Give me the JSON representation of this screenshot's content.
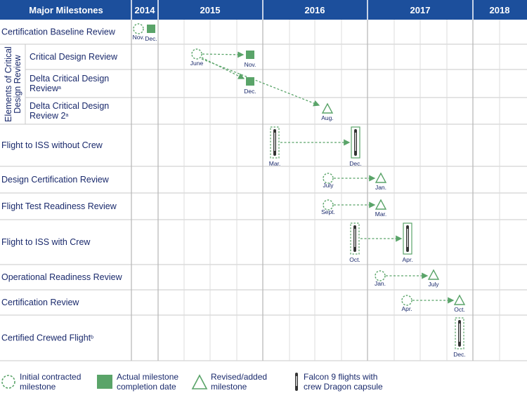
{
  "header": {
    "title": "Major Milestones",
    "years": [
      "2014",
      "2015",
      "2016",
      "2017",
      "2018"
    ]
  },
  "group_label": [
    "Elements of Critical",
    "Design Review"
  ],
  "rows": [
    {
      "lines": [
        "Certification Baseline Review"
      ]
    },
    {
      "lines": [
        "Critical Design Review"
      ]
    },
    {
      "lines": [
        "Delta Critical Design",
        "Review"
      ],
      "sup": "a"
    },
    {
      "lines": [
        "Delta Critical Design",
        "Review 2"
      ],
      "sup": "a"
    },
    {
      "lines": [
        "Flight to ISS without Crew"
      ]
    },
    {
      "lines": [
        "Design Certification Review"
      ]
    },
    {
      "lines": [
        "Flight Test Readiness Review"
      ]
    },
    {
      "lines": [
        "Flight to ISS with Crew"
      ]
    },
    {
      "lines": [
        "Operational Readiness Review"
      ]
    },
    {
      "lines": [
        "Certification Review"
      ]
    },
    {
      "lines": [
        "Certified Crewed Flight"
      ],
      "sup": "b"
    }
  ],
  "marker_labels": {
    "cbr_initial": "Nov.",
    "cbr_actual": "Dec.",
    "cdr_initial": "June",
    "cdr_actual": "Nov.",
    "dcdr_actual": "Dec.",
    "dcdr2_revised": "Aug.",
    "fwo_initial": "Mar.",
    "fwo_revised": "Dec.",
    "dcr_initial": "July",
    "dcr_revised": "Jan.",
    "ftrr_initial": "Sept.",
    "ftrr_revised": "Mar.",
    "fwc_initial": "Oct.",
    "fwc_revised": "Apr.",
    "orr_initial": "Jan.",
    "orr_revised": "July",
    "cr_initial": "Apr.",
    "cr_revised": "Oct.",
    "ccf_initial": "Dec."
  },
  "legend": {
    "initial": [
      "Initial contracted",
      "milestone"
    ],
    "actual": [
      "Actual milestone",
      "completion date"
    ],
    "revised": [
      "Revised/added",
      "milestone"
    ],
    "falcon": [
      "Falcon 9 flights with",
      "crew Dragon capsule"
    ]
  },
  "colors": {
    "header_bg": "#1c4f9c",
    "milestone_green": "#5aa469",
    "text_navy": "#1a2a6c",
    "grid": "#c9c9c9"
  }
}
